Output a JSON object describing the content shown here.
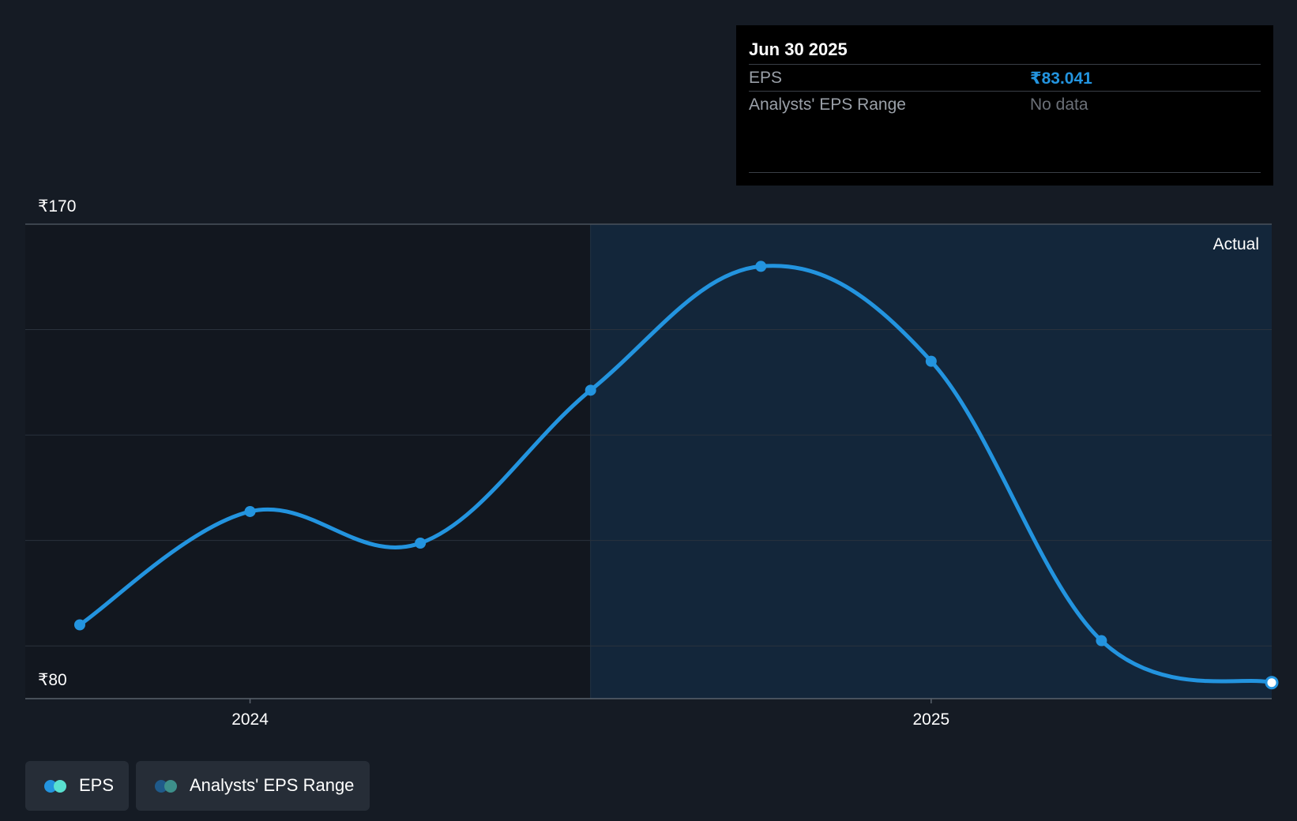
{
  "tooltip": {
    "date": "Jun 30 2025",
    "eps_label": "EPS",
    "eps_value": "₹83.041",
    "range_label": "Analysts' EPS Range",
    "range_value": "No data"
  },
  "legend": {
    "eps_label": "EPS",
    "range_label": "Analysts' EPS Range"
  },
  "colors": {
    "background": "#151b24",
    "line": "#2394df",
    "actual_region": "#13263a",
    "eps_legend_a": "#2394df",
    "eps_legend_b": "#59e0d0",
    "range_legend_a": "#1f5a8a",
    "range_legend_b": "#3d8f8a"
  },
  "chart_data": {
    "type": "line",
    "title": "",
    "xlabel": "",
    "ylabel": "",
    "ylim": [
      80,
      170
    ],
    "y_tick_labels": [
      "₹170",
      "₹80"
    ],
    "x_ticks": [
      {
        "label": "2024",
        "date": 2024.0
      },
      {
        "label": "2025",
        "date": 2025.0
      }
    ],
    "x_range": [
      2023.67,
      2025.5
    ],
    "actual_start": 2024.5,
    "actual_label": "Actual",
    "series": [
      {
        "name": "EPS",
        "x": [
          2023.75,
          2024.0,
          2024.25,
          2024.5,
          2024.75,
          2025.0,
          2025.25,
          2025.5
        ],
        "values": [
          94.0,
          115.5,
          109.5,
          138.5,
          162.0,
          144.0,
          91.0,
          83.041
        ]
      }
    ]
  }
}
